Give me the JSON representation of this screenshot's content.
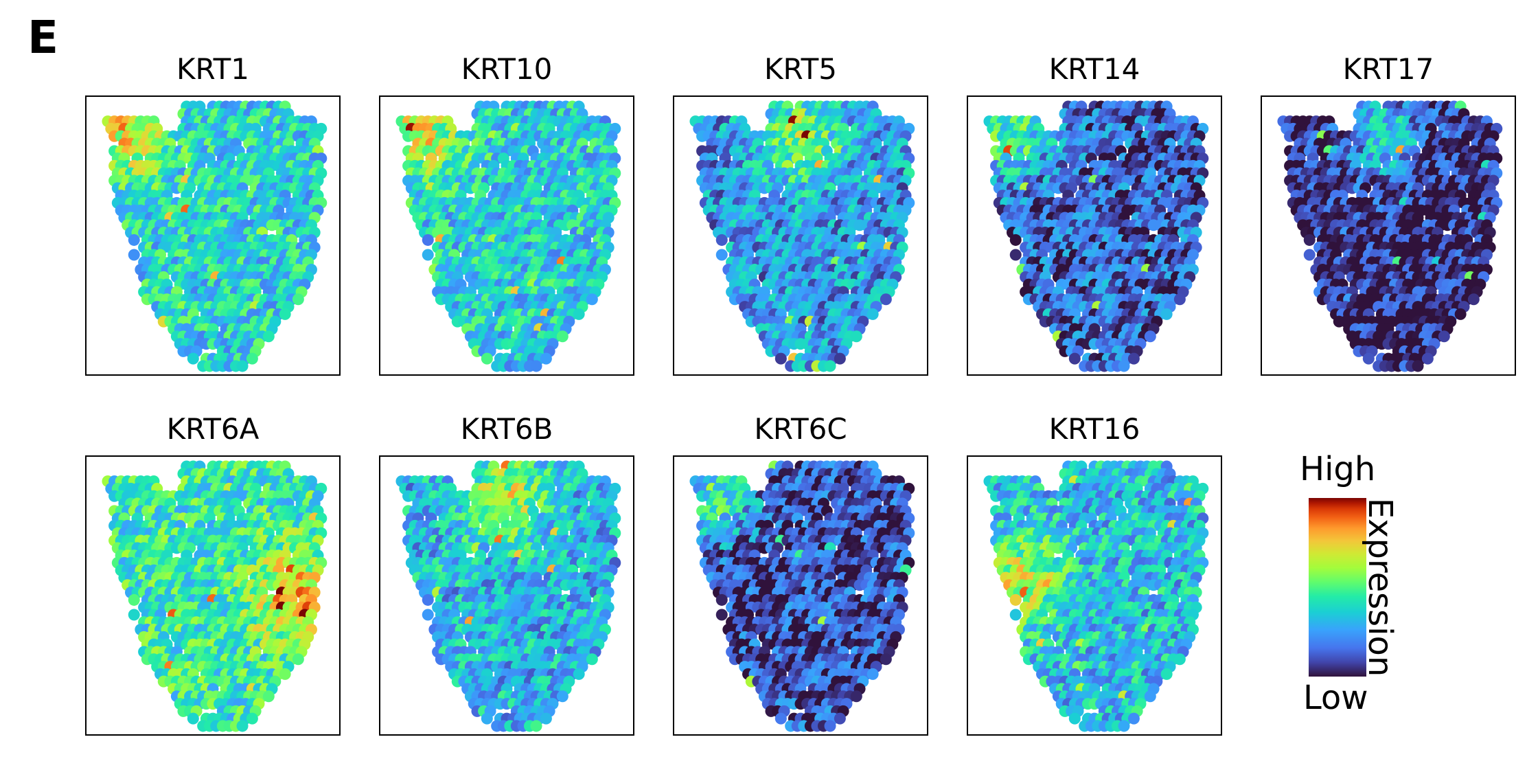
{
  "figure": {
    "panel_label": "E",
    "colorbar": {
      "high_label": "High",
      "low_label": "Low",
      "axis_label": "Expression",
      "colormap": "turbo",
      "stops": [
        "#30123b",
        "#4675ed",
        "#1bcfd4",
        "#61fc6c",
        "#d1e834",
        "#fe9b2d",
        "#d93806",
        "#7a0403"
      ]
    }
  },
  "chart_data": [
    {
      "type": "scatter",
      "title": "KRT1",
      "mean_expression": 0.45,
      "high_region": "top-left",
      "value_range": [
        0,
        1
      ]
    },
    {
      "type": "scatter",
      "title": "KRT10",
      "mean_expression": 0.43,
      "high_region": "top-left",
      "value_range": [
        0,
        1
      ]
    },
    {
      "type": "scatter",
      "title": "KRT5",
      "mean_expression": 0.32,
      "high_region": "top-center",
      "value_range": [
        0,
        1
      ]
    },
    {
      "type": "scatter",
      "title": "KRT14",
      "mean_expression": 0.22,
      "high_region": "top-left",
      "value_range": [
        0,
        1
      ]
    },
    {
      "type": "scatter",
      "title": "KRT17",
      "mean_expression": 0.1,
      "high_region": "top-center",
      "value_range": [
        0,
        1
      ]
    },
    {
      "type": "scatter",
      "title": "KRT6A",
      "mean_expression": 0.52,
      "high_region": "center-right",
      "value_range": [
        0,
        1
      ]
    },
    {
      "type": "scatter",
      "title": "KRT6B",
      "mean_expression": 0.38,
      "high_region": "top-center",
      "value_range": [
        0,
        1
      ]
    },
    {
      "type": "scatter",
      "title": "KRT6C",
      "mean_expression": 0.18,
      "high_region": "top-left",
      "value_range": [
        0,
        1
      ]
    },
    {
      "type": "scatter",
      "title": "KRT16",
      "mean_expression": 0.4,
      "high_region": "center-left",
      "value_range": [
        0,
        1
      ]
    }
  ]
}
